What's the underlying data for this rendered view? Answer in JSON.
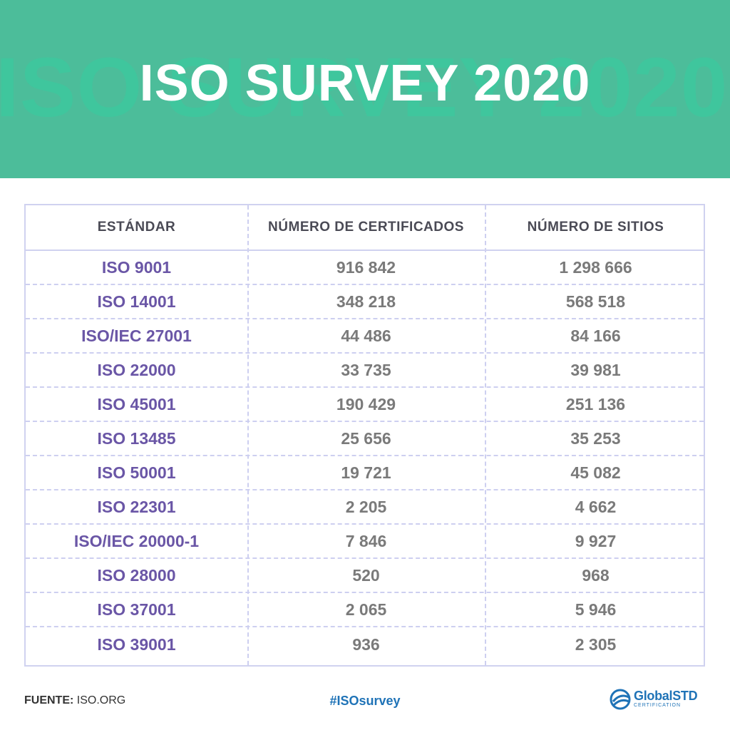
{
  "header": {
    "title": "ISO SURVEY 2020",
    "watermark": "ISO SURVEY 2020"
  },
  "table": {
    "columns": [
      "ESTÁNDAR",
      "NÚMERO DE CERTIFICADOS",
      "NÚMERO DE SITIOS"
    ],
    "rows": [
      [
        "ISO 9001",
        "916 842",
        "1 298 666"
      ],
      [
        "ISO 14001",
        "348 218",
        "568 518"
      ],
      [
        "ISO/IEC 27001",
        "44 486",
        "84 166"
      ],
      [
        "ISO 22000",
        "33 735",
        "39 981"
      ],
      [
        "ISO 45001",
        "190 429",
        "251 136"
      ],
      [
        "ISO 13485",
        "25 656",
        "35 253"
      ],
      [
        "ISO 50001",
        "19 721",
        "45 082"
      ],
      [
        "ISO 22301",
        "2 205",
        "4 662"
      ],
      [
        "ISO/IEC 20000-1",
        "7 846",
        "9 927"
      ],
      [
        "ISO 28000",
        "520",
        "968"
      ],
      [
        "ISO 37001",
        "2 065",
        "5 946"
      ],
      [
        "ISO 39001",
        "936",
        "2 305"
      ]
    ]
  },
  "footer": {
    "source_label": "FUENTE:",
    "source_value": "ISO.ORG",
    "hashtag": "#ISOsurvey",
    "logo_name": "GlobalSTD",
    "logo_sub": "CERTIFICATION"
  },
  "colors": {
    "header_bg": "#4cbd9a",
    "standard_text": "#6a56a6",
    "value_text": "#7a7a7a",
    "grid_line": "#cdcff0",
    "brand_blue": "#1f73b7"
  },
  "icons": {
    "logo": "globalstd-logo-icon"
  }
}
